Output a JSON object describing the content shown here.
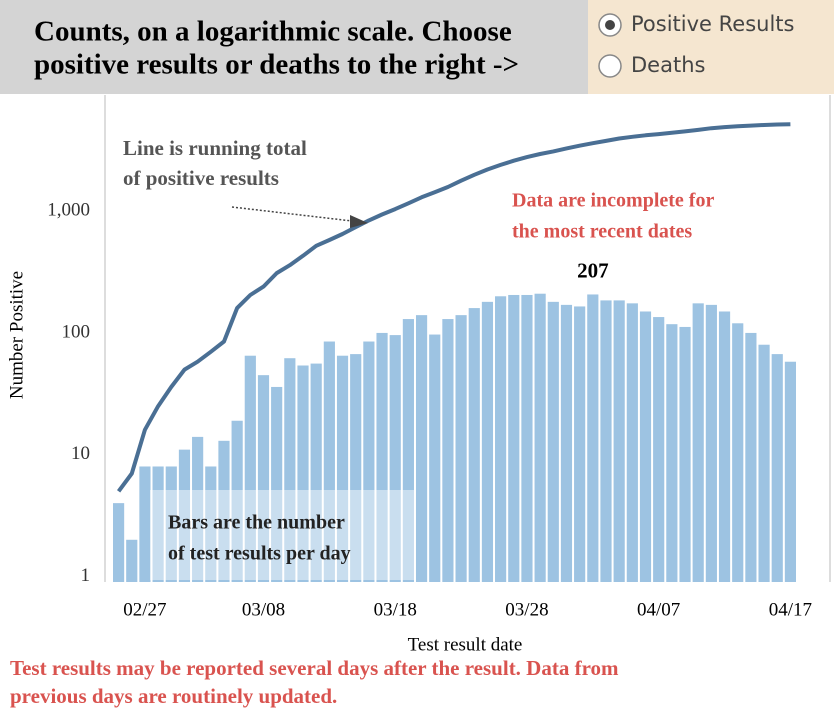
{
  "header": {
    "title_lines": [
      "Counts, on a logarithmic scale. Choose",
      "positive results or deaths to the right ->"
    ]
  },
  "controls": {
    "options": [
      "Positive Results",
      "Deaths"
    ],
    "selected": 0
  },
  "chart_data": {
    "type": "combo",
    "categories": [
      null,
      null,
      "02/27",
      null,
      null,
      null,
      null,
      null,
      null,
      null,
      null,
      "03/08",
      null,
      null,
      null,
      null,
      null,
      null,
      null,
      null,
      null,
      "03/18",
      null,
      null,
      null,
      null,
      null,
      null,
      null,
      null,
      null,
      "03/28",
      null,
      null,
      null,
      null,
      null,
      null,
      null,
      null,
      null,
      "04/07",
      null,
      null,
      null,
      null,
      null,
      null,
      null,
      null,
      null,
      "04/17"
    ],
    "bars": {
      "color": "#9dc3e2",
      "values": [
        4,
        2,
        8,
        8,
        8,
        11,
        14,
        8,
        13,
        19,
        65,
        45,
        36,
        62,
        54,
        56,
        85,
        65,
        67,
        85,
        100,
        96,
        130,
        140,
        97,
        130,
        140,
        160,
        180,
        200,
        205,
        205,
        210,
        180,
        170,
        165,
        207,
        185,
        185,
        175,
        150,
        135,
        118,
        112,
        175,
        170,
        150,
        120,
        100,
        80,
        67,
        58
      ],
      "value_labels": [
        null,
        null,
        null,
        null,
        null,
        null,
        null,
        null,
        null,
        null,
        null,
        null,
        null,
        null,
        null,
        null,
        null,
        null,
        null,
        null,
        null,
        null,
        null,
        null,
        null,
        null,
        null,
        null,
        null,
        null,
        null,
        null,
        null,
        null,
        null,
        null,
        "207",
        null,
        null,
        null,
        null,
        null,
        null,
        null,
        null,
        null,
        null,
        null,
        null,
        null,
        null,
        null
      ]
    },
    "line": {
      "color": "#4a6f94",
      "values": [
        5,
        7,
        16,
        25,
        36,
        50,
        58,
        70,
        85,
        160,
        205,
        240,
        310,
        360,
        430,
        520,
        580,
        650,
        740,
        840,
        940,
        1040,
        1160,
        1300,
        1430,
        1580,
        1780,
        1990,
        2200,
        2400,
        2600,
        2780,
        2950,
        3100,
        3280,
        3450,
        3620,
        3780,
        3950,
        4080,
        4200,
        4300,
        4400,
        4520,
        4650,
        4800,
        4900,
        4980,
        5050,
        5100,
        5150,
        5180
      ]
    },
    "log_y": true,
    "ylim": [
      0.9,
      9000
    ],
    "yticks": [
      1,
      10,
      100,
      {
        "value": 1000,
        "label": "1,000"
      }
    ],
    "ylabel": "Number Positive",
    "xlabel": "Test result date",
    "annotations": {
      "line_note": [
        "Line is running total",
        "of positive results"
      ],
      "incomplete_note": [
        "Data are incomplete for",
        "the most recent dates"
      ],
      "bar_note": [
        "Bars are the number",
        "of test results per day"
      ]
    }
  },
  "footnote": [
    "Test results may be reported several days after the result. Data from",
    "previous days are routinely updated."
  ]
}
